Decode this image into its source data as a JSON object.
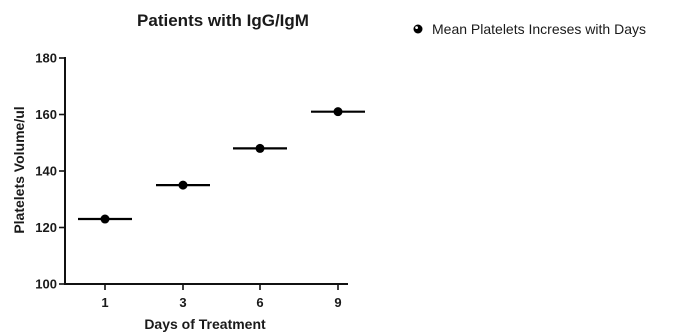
{
  "chart_data": {
    "type": "scatter",
    "title": "Patients with IgG/IgM",
    "xlabel": "Days of Treatment",
    "ylabel": "Platelets Volume/ul",
    "categories": [
      "1",
      "3",
      "6",
      "9"
    ],
    "series": [
      {
        "name": "Mean Platelets Increses with Days",
        "values": [
          123,
          135,
          148,
          161
        ]
      }
    ],
    "ylim": [
      100,
      180
    ],
    "yticks": [
      100,
      120,
      140,
      160,
      180
    ],
    "grid": false,
    "legend_position": "top-right",
    "colors": {
      "series": "#000000",
      "axis": "#111111"
    }
  }
}
